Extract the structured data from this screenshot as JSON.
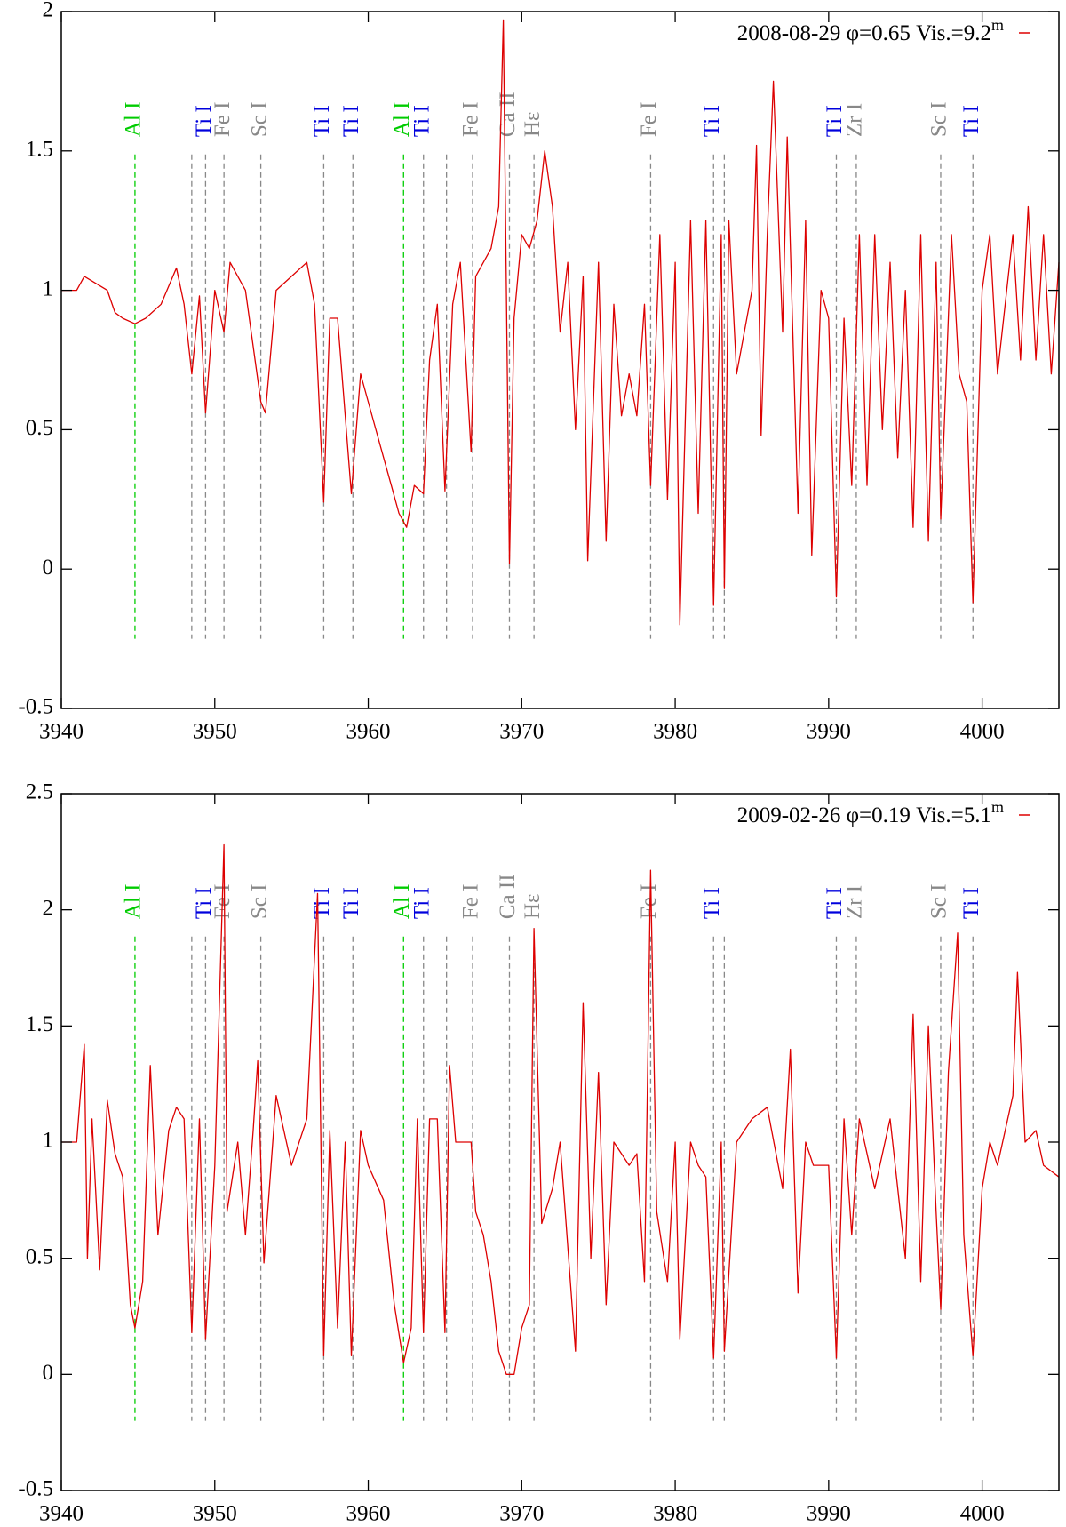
{
  "chart_data": [
    {
      "type": "line",
      "x": [
        3940,
        3941,
        3941.5,
        3943,
        3943.5,
        3944,
        3944.8,
        3945.5,
        3946.5,
        3947.5,
        3948,
        3948.5,
        3949,
        3949.4,
        3950,
        3950.6,
        3951,
        3952,
        3953,
        3953.3,
        3954,
        3955,
        3956,
        3956.5,
        3957.1,
        3957.5,
        3958,
        3958.9,
        3959.5,
        3960,
        3961,
        3961.5,
        3962,
        3962.5,
        3963,
        3963.6,
        3964,
        3964.5,
        3965,
        3965.5,
        3966,
        3966.7,
        3967,
        3968,
        3968.5,
        3968.8,
        3969.2,
        3969.5,
        3970,
        3970.5,
        3971,
        3971.5,
        3972,
        3972.5,
        3973,
        3973.5,
        3974,
        3974.3,
        3975,
        3975.5,
        3976,
        3976.5,
        3977,
        3977.5,
        3978,
        3978.4,
        3979,
        3979.5,
        3980,
        3980.3,
        3981,
        3981.5,
        3982,
        3982.5,
        3983,
        3983.2,
        3983.5,
        3984,
        3985,
        3985.3,
        3985.6,
        3986,
        3986.4,
        3987,
        3987.3,
        3988,
        3988.5,
        3988.9,
        3989.5,
        3990,
        3990.5,
        3991,
        3991.5,
        3992,
        3992.5,
        3993,
        3993.5,
        3994,
        3994.5,
        3995,
        3995.5,
        3996,
        3996.5,
        3997,
        3997.3,
        3998,
        3998.5,
        3999,
        3999.4,
        4000,
        4000.5,
        4001,
        4002,
        4002.5,
        4003,
        4003.5,
        4004,
        4004.5,
        4005
      ],
      "series": [
        {
          "name": "2008-08-29 φ=0.65 Vis.=9.2",
          "name_superscript": "m",
          "color": "#dd0000",
          "values": [
            1.0,
            1.0,
            1.05,
            1.0,
            0.92,
            0.9,
            0.88,
            0.9,
            0.95,
            1.08,
            0.95,
            0.7,
            0.98,
            0.56,
            1.0,
            0.85,
            1.1,
            1.0,
            0.6,
            0.56,
            1.0,
            1.05,
            1.1,
            0.95,
            0.24,
            0.9,
            0.9,
            0.27,
            0.7,
            0.6,
            0.4,
            0.3,
            0.2,
            0.15,
            0.3,
            0.27,
            0.75,
            0.95,
            0.28,
            0.95,
            1.1,
            0.42,
            1.05,
            1.15,
            1.3,
            1.97,
            0.02,
            0.9,
            1.2,
            1.15,
            1.25,
            1.5,
            1.3,
            0.85,
            1.1,
            0.5,
            1.05,
            0.03,
            1.1,
            0.1,
            0.95,
            0.55,
            0.7,
            0.55,
            0.95,
            0.3,
            1.2,
            0.25,
            1.1,
            -0.2,
            1.25,
            0.2,
            1.25,
            -0.13,
            1.2,
            -0.07,
            1.25,
            0.7,
            1.0,
            1.52,
            0.48,
            1.2,
            1.75,
            0.85,
            1.55,
            0.2,
            1.25,
            0.05,
            1.0,
            0.9,
            -0.1,
            0.9,
            0.3,
            1.2,
            0.3,
            1.2,
            0.5,
            1.1,
            0.4,
            1.0,
            0.15,
            1.2,
            0.1,
            1.1,
            0.18,
            1.2,
            0.7,
            0.6,
            -0.12,
            1.0,
            1.2,
            0.7,
            1.2,
            0.75,
            1.3,
            0.75,
            1.2,
            0.7,
            1.1
          ]
        }
      ],
      "xlim": [
        3940,
        4005
      ],
      "xticks": [
        3940,
        3950,
        3960,
        3970,
        3980,
        3990,
        4000
      ],
      "ylim": [
        -0.5,
        2
      ],
      "yticks": [
        -0.5,
        0,
        0.5,
        1,
        1.5,
        2
      ],
      "line_ids": {
        "x": [
          3944.8,
          3948.5,
          3949.4,
          3950.6,
          3953.0,
          3957.1,
          3959.0,
          3962.3,
          3963.6,
          3965.1,
          3966.8,
          3969.2,
          3970.8,
          3978.4,
          3982.5,
          3983.2,
          3990.5,
          3991.8,
          3997.3,
          3999.4
        ],
        "labels": [
          "Al I",
          null,
          "Ti I",
          "Fe I",
          "Sc I",
          "Ti I",
          "Ti I",
          "Al I",
          "Ti I",
          null,
          "Fe I",
          "Ca II",
          "Hε",
          "Fe I",
          "Ti I",
          null,
          "Ti I",
          "Zr I",
          "Sc I",
          "Ti I"
        ],
        "label_colors": [
          "#00cc00",
          "#0000dd",
          "#0000dd",
          "#888888",
          "#888888",
          "#0000dd",
          "#0000dd",
          "#00cc00",
          "#0000dd",
          "#888888",
          "#888888",
          "#888888",
          "#888888",
          "#888888",
          "#0000dd",
          "#888888",
          "#0000dd",
          "#888888",
          "#888888",
          "#0000dd"
        ],
        "line_colors": [
          "#00cc00",
          "#888888",
          "#888888",
          "#888888",
          "#888888",
          "#888888",
          "#888888",
          "#00cc00",
          "#888888",
          "#888888",
          "#888888",
          "#888888",
          "#888888",
          "#888888",
          "#888888",
          "#888888",
          "#888888",
          "#888888",
          "#888888",
          "#888888"
        ]
      }
    },
    {
      "type": "line",
      "x": [
        3940,
        3941,
        3941.5,
        3941.7,
        3942,
        3942.5,
        3943,
        3943.5,
        3944,
        3944.5,
        3944.8,
        3945.3,
        3945.8,
        3946.3,
        3947,
        3947.5,
        3948,
        3948.5,
        3949,
        3949.4,
        3950,
        3950.6,
        3950.8,
        3951.5,
        3952,
        3952.5,
        3952.8,
        3953.2,
        3954,
        3955,
        3956,
        3956.7,
        3957.1,
        3957.5,
        3958,
        3958.5,
        3958.9,
        3959.5,
        3960,
        3961,
        3961.7,
        3962.3,
        3962.8,
        3963.2,
        3963.6,
        3964,
        3964.5,
        3965,
        3965.3,
        3965.7,
        3966.7,
        3967,
        3967.5,
        3968,
        3968.5,
        3969,
        3969.5,
        3970,
        3970.5,
        3970.8,
        3971.3,
        3972,
        3972.5,
        3973.5,
        3974,
        3974.5,
        3975,
        3975.5,
        3976,
        3977,
        3977.5,
        3978,
        3978.4,
        3978.8,
        3979.5,
        3980,
        3980.3,
        3981,
        3981.5,
        3982,
        3982.5,
        3983,
        3983.2,
        3984,
        3985,
        3986,
        3987,
        3987.5,
        3988,
        3988.5,
        3989,
        3990,
        3990.5,
        3991,
        3991.5,
        3992,
        3993,
        3994,
        3995,
        3995.5,
        3996,
        3996.5,
        3997,
        3997.3,
        3997.8,
        3998.4,
        3998.8,
        3999.4,
        4000,
        4000.5,
        4001,
        4002,
        4002.3,
        4002.8,
        4003.5,
        4004,
        4005
      ],
      "series": [
        {
          "name": "2009-02-26 φ=0.19 Vis.=5.1",
          "name_superscript": "m",
          "color": "#dd0000",
          "values": [
            1.0,
            1.0,
            1.42,
            0.5,
            1.1,
            0.45,
            1.18,
            0.95,
            0.85,
            0.3,
            0.2,
            0.4,
            1.33,
            0.6,
            1.05,
            1.15,
            1.1,
            0.18,
            1.1,
            0.15,
            0.9,
            2.28,
            0.7,
            1.0,
            0.6,
            1.05,
            1.35,
            0.48,
            1.2,
            0.9,
            1.1,
            2.07,
            0.08,
            1.05,
            0.2,
            1.0,
            0.08,
            1.05,
            0.9,
            0.75,
            0.3,
            0.05,
            0.2,
            1.1,
            0.18,
            1.1,
            1.1,
            0.18,
            1.33,
            1.0,
            1.0,
            0.7,
            0.6,
            0.4,
            0.1,
            0.0,
            0.0,
            0.2,
            0.3,
            1.92,
            0.65,
            0.8,
            1.0,
            0.1,
            1.6,
            0.5,
            1.3,
            0.3,
            1.0,
            0.9,
            0.95,
            0.4,
            2.17,
            0.7,
            0.4,
            1.0,
            0.15,
            1.0,
            0.9,
            0.85,
            0.07,
            1.0,
            0.1,
            1.0,
            1.1,
            1.15,
            0.8,
            1.4,
            0.35,
            1.0,
            0.9,
            0.9,
            0.07,
            1.1,
            0.6,
            1.1,
            0.8,
            1.1,
            0.5,
            1.55,
            0.4,
            1.5,
            0.7,
            0.28,
            1.3,
            1.9,
            0.6,
            0.08,
            0.8,
            1.0,
            0.9,
            1.2,
            1.73,
            1.0,
            1.05,
            0.9,
            0.85
          ]
        }
      ],
      "xlim": [
        3940,
        4005
      ],
      "xticks": [
        3940,
        3950,
        3960,
        3970,
        3980,
        3990,
        4000
      ],
      "ylim": [
        -0.5,
        2.5
      ],
      "yticks": [
        -0.5,
        0,
        0.5,
        1,
        1.5,
        2,
        2.5
      ],
      "line_ids": {
        "x": [
          3944.8,
          3948.5,
          3949.4,
          3950.6,
          3953.0,
          3957.1,
          3959.0,
          3962.3,
          3963.6,
          3965.1,
          3966.8,
          3969.2,
          3970.8,
          3978.4,
          3982.5,
          3983.2,
          3990.5,
          3991.8,
          3997.3,
          3999.4
        ],
        "labels": [
          "Al I",
          null,
          "Ti I",
          "Fe I",
          "Sc I",
          "Ti I",
          "Ti I",
          "Al I",
          "Ti I",
          null,
          "Fe I",
          "Ca II",
          "Hε",
          "Fe I",
          "Ti I",
          null,
          "Ti I",
          "Zr I",
          "Sc I",
          "Ti I"
        ],
        "label_colors": [
          "#00cc00",
          "#0000dd",
          "#0000dd",
          "#888888",
          "#888888",
          "#0000dd",
          "#0000dd",
          "#00cc00",
          "#0000dd",
          "#888888",
          "#888888",
          "#888888",
          "#888888",
          "#888888",
          "#0000dd",
          "#888888",
          "#0000dd",
          "#888888",
          "#888888",
          "#0000dd"
        ],
        "line_colors": [
          "#00cc00",
          "#888888",
          "#888888",
          "#888888",
          "#888888",
          "#888888",
          "#888888",
          "#00cc00",
          "#888888",
          "#888888",
          "#888888",
          "#888888",
          "#888888",
          "#888888",
          "#888888",
          "#888888",
          "#888888",
          "#888888",
          "#888888",
          "#888888"
        ]
      }
    }
  ]
}
